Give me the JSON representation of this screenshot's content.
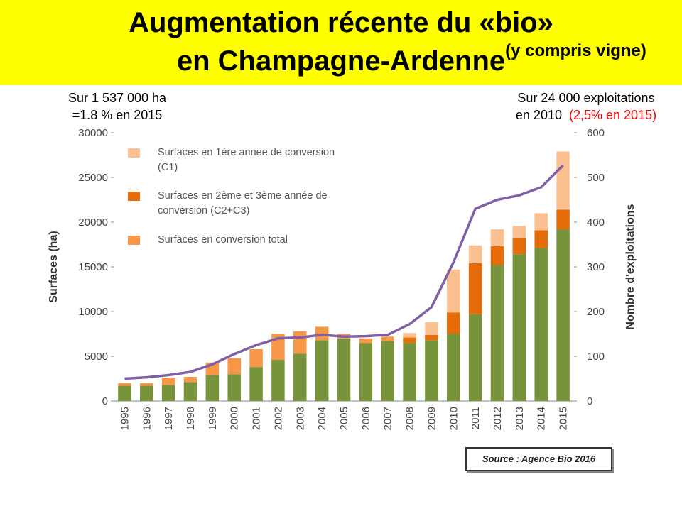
{
  "chart_data": {
    "type": "bar",
    "title": "Augmentation récente du «bio»",
    "title_line2": "en Champagne-Ardenne",
    "title_note": "(y compris vigne)",
    "left_note": [
      "Sur 1 537 000 ha",
      "=1.8 % en 2015"
    ],
    "right_note": [
      "Sur 24 000 exploitations",
      "en 2010",
      "(2,5% en 2015)"
    ],
    "source": "Source : Agence Bio 2016",
    "ylabel": "Surfaces (ha)",
    "y2label": "Nombre d'exploitations",
    "categories": [
      "1995",
      "1996",
      "1997",
      "1998",
      "1999",
      "2000",
      "2001",
      "2002",
      "2003",
      "2004",
      "2005",
      "2006",
      "2007",
      "2008",
      "2009",
      "2010",
      "2011",
      "2012",
      "2013",
      "2014",
      "2015"
    ],
    "series": [
      {
        "color": "#77933c",
        "values": [
          1700,
          1700,
          1800,
          2100,
          2900,
          3000,
          3800,
          4600,
          5300,
          6800,
          7000,
          6500,
          6700,
          6500,
          6800,
          7500,
          9700,
          15200,
          16400,
          17100,
          19200
        ]
      },
      {
        "name": "Surfaces en 1ère année de conversion (C1)",
        "color": "#fac090",
        "values": [
          null,
          null,
          null,
          null,
          null,
          null,
          null,
          null,
          null,
          null,
          null,
          null,
          null,
          500,
          1400,
          4800,
          2000,
          1900,
          1400,
          1900,
          6500
        ]
      },
      {
        "name": "Surfaces en 2ème et 3ème année de conversion (C2+C3)",
        "color": "#e46c0a",
        "values": [
          null,
          null,
          null,
          null,
          null,
          null,
          null,
          null,
          null,
          null,
          null,
          null,
          null,
          600,
          600,
          2400,
          5700,
          2100,
          1800,
          2000,
          2200
        ]
      },
      {
        "name": "Surfaces en conversion total",
        "color": "#f79646",
        "values": [
          300,
          300,
          800,
          600,
          1400,
          1800,
          2000,
          2900,
          2500,
          1500,
          500,
          500,
          500,
          null,
          null,
          null,
          null,
          null,
          null,
          null,
          null
        ]
      },
      {
        "type": "line",
        "axis": "y2",
        "color": "#7f5fa8",
        "values": [
          50,
          53,
          58,
          65,
          82,
          105,
          125,
          140,
          142,
          148,
          144,
          145,
          148,
          172,
          210,
          310,
          430,
          450,
          460,
          478,
          527
        ]
      }
    ],
    "ylim": [
      0,
      30000
    ],
    "yticks": [
      0,
      5000,
      10000,
      15000,
      20000,
      25000,
      30000
    ],
    "y2lim": [
      0,
      600
    ],
    "y2ticks": [
      0,
      100,
      200,
      300,
      400,
      500,
      600
    ]
  }
}
